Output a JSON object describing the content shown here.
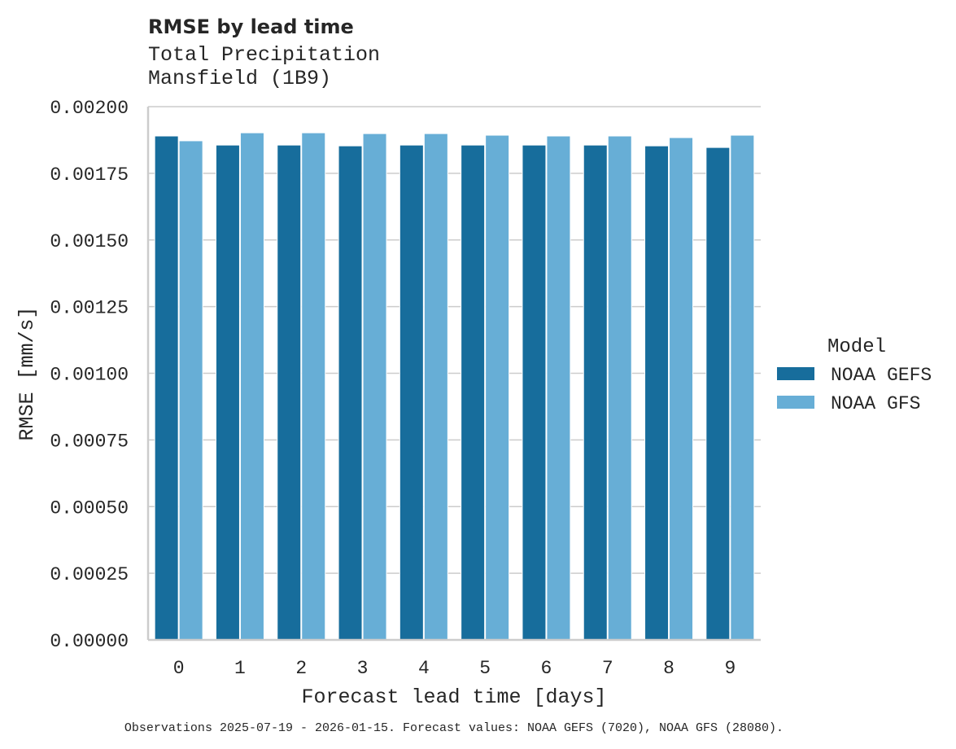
{
  "chart_data": {
    "type": "bar",
    "title": "RMSE by lead time",
    "subtitle_lines": [
      "Total Precipitation",
      "Mansfield (1B9)"
    ],
    "xlabel": "Forecast lead time [days]",
    "ylabel": "RMSE [mm/s]",
    "ylim": [
      0,
      0.002
    ],
    "yticks": [
      "0.00000",
      "0.00025",
      "0.00050",
      "0.00075",
      "0.00100",
      "0.00125",
      "0.00150",
      "0.00175",
      "0.00200"
    ],
    "categories": [
      "0",
      "1",
      "2",
      "3",
      "4",
      "5",
      "6",
      "7",
      "8",
      "9"
    ],
    "grid": "horizontal",
    "legend": {
      "title": "Model",
      "placement": "right"
    },
    "series": [
      {
        "name": "NOAA GEFS",
        "color": "#176d9c",
        "values": [
          0.00189,
          0.001856,
          0.001856,
          0.001853,
          0.001856,
          0.001856,
          0.001856,
          0.001856,
          0.001853,
          0.001847
        ]
      },
      {
        "name": "NOAA GFS",
        "color": "#67aed6",
        "values": [
          0.001872,
          0.001902,
          0.001902,
          0.001899,
          0.001899,
          0.001893,
          0.00189,
          0.00189,
          0.001884,
          0.001893
        ]
      }
    ],
    "footnote": "Observations 2025-07-19 - 2026-01-15. Forecast values: NOAA GEFS (7020), NOAA GFS (28080)."
  }
}
